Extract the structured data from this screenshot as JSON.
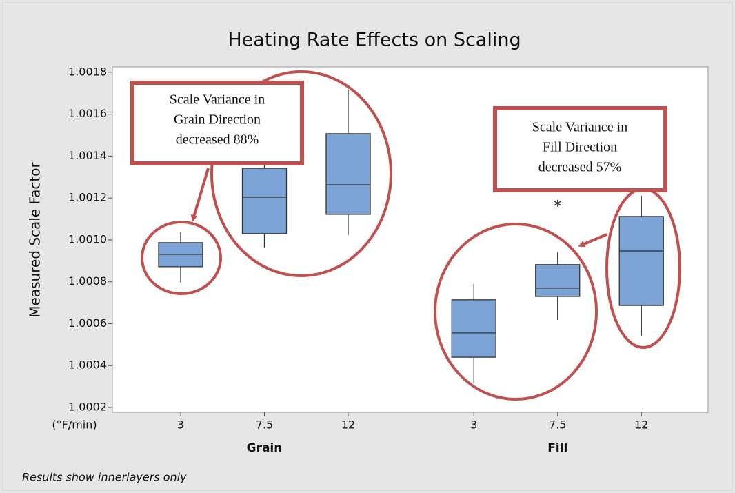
{
  "chart_data": {
    "type": "box",
    "title": "Heating Rate Effects on Scaling",
    "y_label": "Measured Scale Factor",
    "x_label": "(°F/min)",
    "footnote": "Results show innerlayers only",
    "categories": [
      "3",
      "7.5",
      "12",
      "3",
      "7.5",
      "12"
    ],
    "groups": [
      "Grain",
      "Fill"
    ],
    "group_of": [
      0,
      0,
      0,
      1,
      1,
      1
    ],
    "color": "#7ba3d6",
    "ylim": [
      1.000177,
      1.001826
    ],
    "yticks": [
      1.0002,
      1.0004,
      1.0006,
      1.0008,
      {
        "value": 1.001,
        "label": "1.0010"
      },
      1.0012,
      1.0014,
      1.0016,
      1.0018
    ],
    "boxes": [
      {
        "whisker_low": 1.000796,
        "q1": 1.000872,
        "median": 1.000931,
        "q3": 1.000987,
        "whisker_high": 1.001036,
        "outliers": []
      },
      {
        "whisker_low": 1.000964,
        "q1": 1.00103,
        "median": 1.001204,
        "q3": 1.001342,
        "whisker_high": 1.00148,
        "outliers": []
      },
      {
        "whisker_low": 1.001023,
        "q1": 1.001122,
        "median": 1.001263,
        "q3": 1.001507,
        "whisker_high": 1.001718,
        "outliers": []
      },
      {
        "whisker_low": 1.000315,
        "q1": 1.00044,
        "median": 1.000556,
        "q3": 1.000714,
        "whisker_high": 1.000789,
        "outliers": []
      },
      {
        "whisker_low": 1.000618,
        "q1": 1.00073,
        "median": 1.00077,
        "q3": 1.000882,
        "whisker_high": 1.000941,
        "outliers": [
          1.001175
        ]
      },
      {
        "whisker_low": 1.000542,
        "q1": 1.000687,
        "median": 1.000947,
        "q3": 1.001112,
        "whisker_high": 1.001211,
        "outliers": []
      }
    ],
    "annotations": [
      {
        "lines": [
          "Scale Variance in",
          "Grain Direction",
          "decreased 88%"
        ]
      },
      {
        "lines": [
          "Scale Variance in",
          "Fill Direction",
          "decreased 57%"
        ]
      }
    ]
  }
}
